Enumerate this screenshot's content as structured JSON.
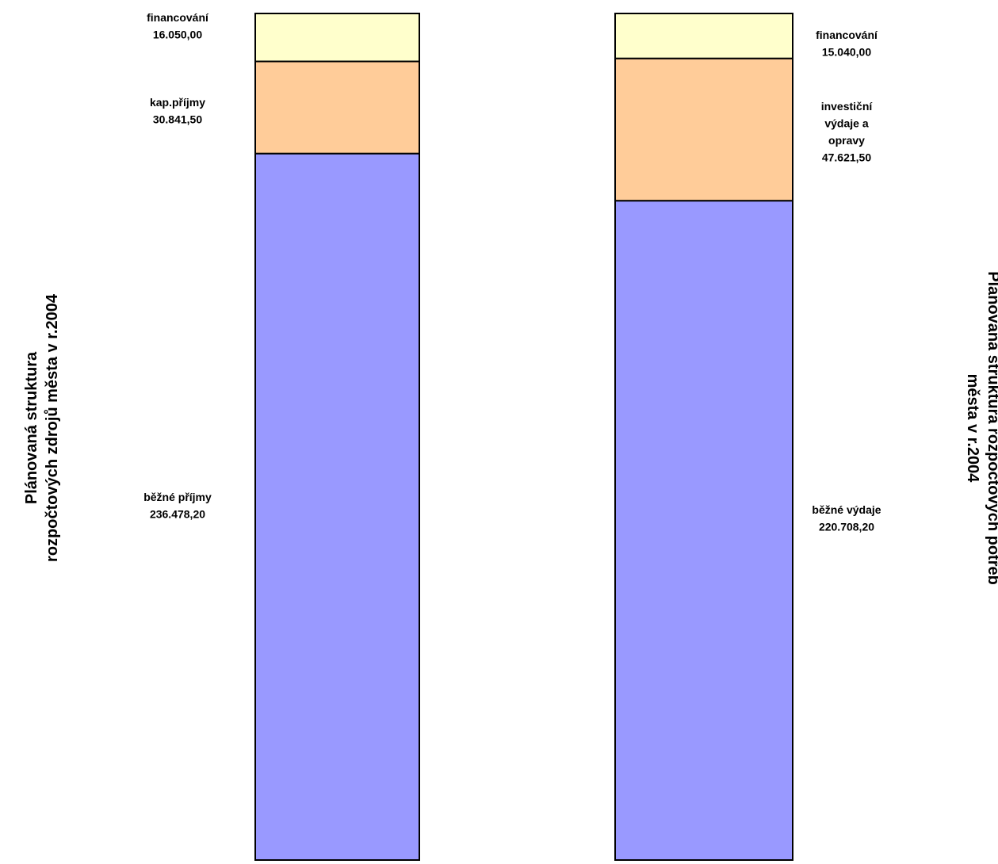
{
  "chart_data": {
    "type": "bar",
    "stacked": true,
    "colors": {
      "bottom": "#9999ff",
      "middle": "#ffcc99",
      "top": "#ffffcc",
      "outline": "#000000"
    },
    "bars": [
      {
        "title": [
          "Plánovaná struktura",
          "rozpočtových zdrojů města v r.2004"
        ],
        "segments": [
          {
            "name": "běžné příjmy",
            "value": 236478.2,
            "label_lines": [
              "běžné příjmy",
              "236.478,20"
            ],
            "color": "#9999ff"
          },
          {
            "name": "kap.příjmy",
            "value": 30841.5,
            "label_lines": [
              "kap.příjmy",
              "30.841,50"
            ],
            "color": "#ffcc99"
          },
          {
            "name": "financování",
            "value": 16050.0,
            "label_lines": [
              "financování",
              "16.050,00"
            ],
            "color": "#ffffcc"
          }
        ]
      },
      {
        "title": [
          "Plánovaná struktura rozpočtových potřeb",
          "města v r.2004"
        ],
        "segments": [
          {
            "name": "běžné výdaje",
            "value": 220708.2,
            "label_lines": [
              "běžné výdaje",
              "220.708,20"
            ],
            "color": "#9999ff"
          },
          {
            "name": "investiční výdaje a opravy",
            "value": 47621.5,
            "label_lines": [
              "investiční",
              "výdaje a",
              "opravy",
              "47.621,50"
            ],
            "color": "#ffcc99"
          },
          {
            "name": "financování",
            "value": 15040.0,
            "label_lines": [
              "financování",
              "15.040,00"
            ],
            "color": "#ffffcc"
          }
        ]
      }
    ]
  }
}
